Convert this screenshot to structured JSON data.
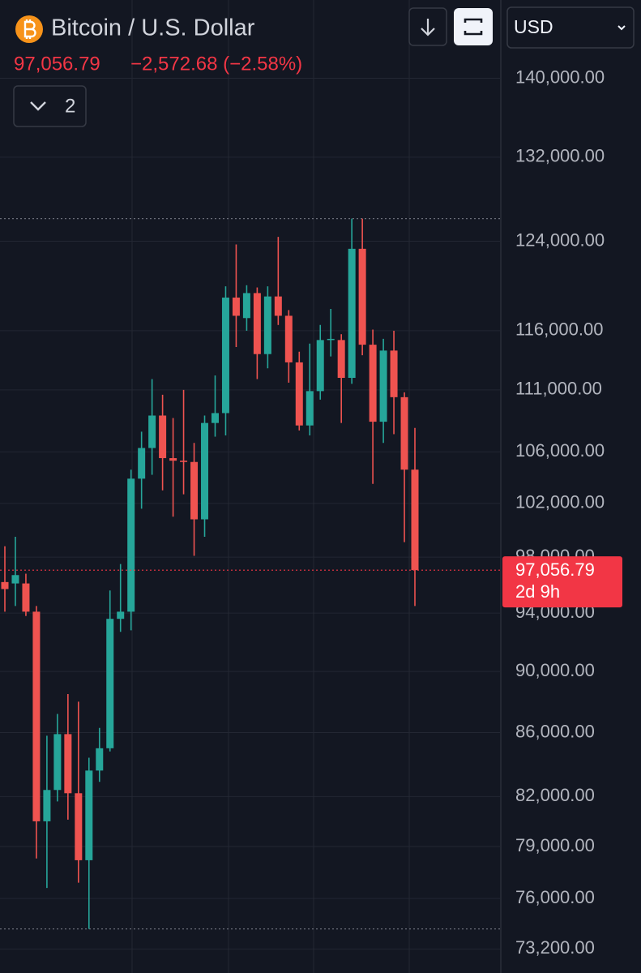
{
  "chart_data": {
    "type": "candlestick",
    "title": "Bitcoin / U.S. Dollar",
    "change": "−2,572.68 (−2.58%)",
    "currency": "USD",
    "indicator_count": "2",
    "countdown": "2d 9h",
    "last_price": {
      "value": 97056.79,
      "label": "97,056.79"
    },
    "log": true,
    "grid": true,
    "up_color": "#26a69a",
    "down_color": "#ef5350",
    "ylim": [
      71900,
      148400
    ],
    "yticks": [
      {
        "value": 140000,
        "label": "140,000.00"
      },
      {
        "value": 132000,
        "label": "132,000.00"
      },
      {
        "value": 124000,
        "label": "124,000.00"
      },
      {
        "value": 116000,
        "label": "116,000.00"
      },
      {
        "value": 111000,
        "label": "111,000.00"
      },
      {
        "value": 106000,
        "label": "106,000.00"
      },
      {
        "value": 102000,
        "label": "102,000.00"
      },
      {
        "value": 98000,
        "label": "98,000.00"
      },
      {
        "value": 94000,
        "label": "94,000.00"
      },
      {
        "value": 90000,
        "label": "90,000.00"
      },
      {
        "value": 86000,
        "label": "86,000.00"
      },
      {
        "value": 82000,
        "label": "82,000.00"
      },
      {
        "value": 79000,
        "label": "79,000.00"
      },
      {
        "value": 76000,
        "label": "76,000.00"
      },
      {
        "value": 73200,
        "label": "73,200.00"
      }
    ],
    "open": [
      96200,
      96100,
      96100,
      94100,
      80500,
      82400,
      85900,
      82200,
      78200,
      83600,
      85000,
      93600,
      94100,
      103900,
      106300,
      108900,
      105500,
      105300,
      105200,
      100800,
      108300,
      109100,
      118900,
      117100,
      119300,
      114000,
      119000,
      117300,
      113300,
      108100,
      110900,
      115200,
      115200,
      112000,
      123300,
      114800,
      108400,
      114300,
      110400,
      104600
    ],
    "high": [
      98800,
      99500,
      96800,
      94500,
      85800,
      87200,
      88500,
      88000,
      84400,
      86300,
      95600,
      97500,
      104600,
      107600,
      111900,
      110600,
      108700,
      111000,
      106700,
      108900,
      112200,
      119900,
      123700,
      120000,
      119800,
      119900,
      124400,
      117800,
      114200,
      114900,
      116500,
      117900,
      115700,
      126100,
      126100,
      116100,
      115300,
      116000,
      110800,
      107900
    ],
    "low": [
      94100,
      94500,
      93800,
      78300,
      76600,
      81700,
      80600,
      76900,
      74300,
      82900,
      84800,
      92700,
      92800,
      101600,
      104200,
      103000,
      101000,
      102700,
      98100,
      99500,
      107200,
      107300,
      114600,
      116000,
      111900,
      112800,
      116500,
      111600,
      107700,
      107300,
      110200,
      113800,
      108300,
      111500,
      113900,
      103500,
      106700,
      107400,
      99100,
      94500
    ],
    "close": [
      95700,
      96700,
      94100,
      80500,
      82400,
      85900,
      82200,
      78200,
      83600,
      85000,
      93600,
      94100,
      103900,
      106300,
      108900,
      105500,
      105300,
      105200,
      100800,
      108300,
      109100,
      118900,
      117300,
      119300,
      114000,
      119000,
      117300,
      113300,
      108100,
      110900,
      115200,
      115300,
      112000,
      123300,
      114800,
      108400,
      114300,
      110400,
      104600,
      97056.79
    ]
  }
}
